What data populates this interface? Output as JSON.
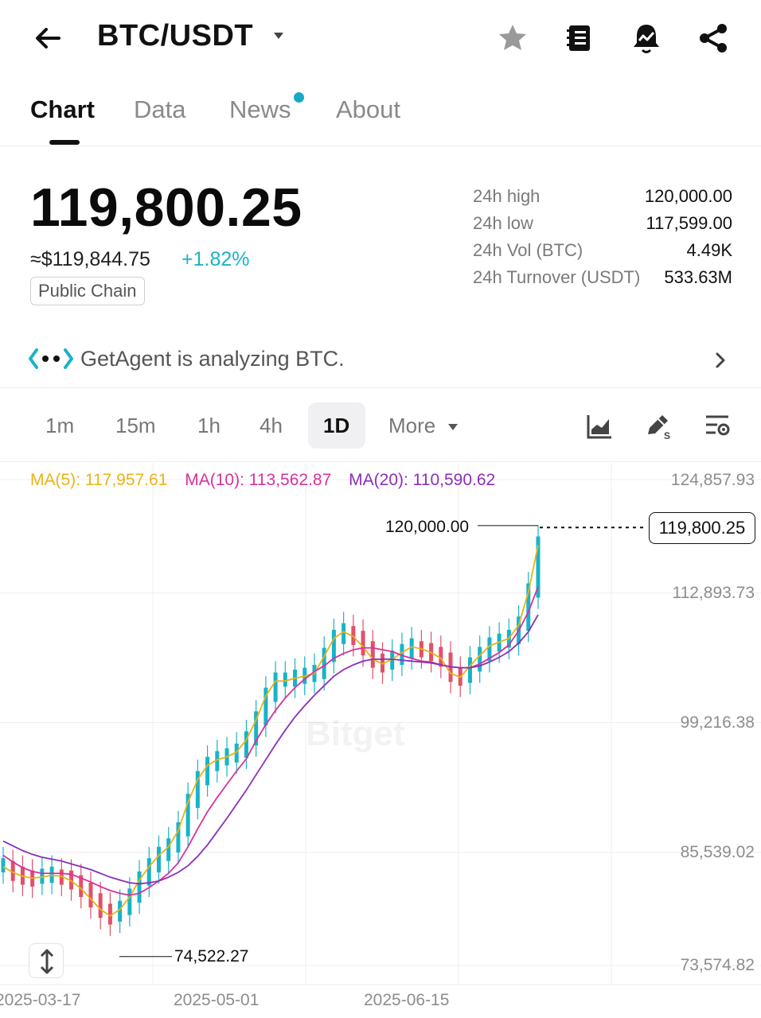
{
  "header": {
    "pair": "BTC/USDT",
    "icons": [
      "back-arrow-icon",
      "caret-down-icon",
      "star-icon",
      "notebook-icon",
      "price-alert-bell-icon",
      "share-icon"
    ]
  },
  "tabs": [
    {
      "label": "Chart",
      "active": true
    },
    {
      "label": "Data",
      "active": false
    },
    {
      "label": "News",
      "active": false,
      "has_dot": true
    },
    {
      "label": "About",
      "active": false
    }
  ],
  "ticker": {
    "price": "119,800.25",
    "usd_equiv": "≈$119,844.75",
    "change_pct": "+1.82%",
    "badge": "Public Chain",
    "change_color": "#19b3c9"
  },
  "stats": [
    {
      "label": "24h high",
      "value": "120,000.00"
    },
    {
      "label": "24h low",
      "value": "117,599.00"
    },
    {
      "label": "24h Vol (BTC)",
      "value": "4.49K"
    },
    {
      "label": "24h Turnover (USDT)",
      "value": "533.63M"
    }
  ],
  "agent_bar": {
    "text": "GetAgent is analyzing BTC."
  },
  "intervals": {
    "items": [
      "1m",
      "15m",
      "1h",
      "4h",
      "1D"
    ],
    "active": "1D",
    "more_label": "More"
  },
  "chart": {
    "ma5_label": "MA(5): 117,957.61",
    "ma10_label": "MA(10): 113,562.87",
    "ma20_label": "MA(20): 110,590.62",
    "last_price": "119,800.25",
    "high_marker": "120,000.00",
    "low_marker": "74,522.27",
    "watermark": "Bitget",
    "colors": {
      "up": "#19b3c9",
      "down": "#e15169",
      "ma5": "#e8b416",
      "ma10": "#d6329c",
      "ma20": "#8a2fb8"
    }
  },
  "chart_data": {
    "type": "candlestick",
    "y_ticks": [
      "124,857.93",
      "112,893.73",
      "99,216.38",
      "85,539.02",
      "73,574.82"
    ],
    "x_ticks": [
      "2025-03-17",
      "2025-05-01",
      "2025-06-15"
    ],
    "ylim": [
      73574.82,
      124857.93
    ],
    "series": [
      {
        "name": "MA(5)",
        "values": [
          84000,
          83400,
          83000,
          82800,
          82900,
          83100,
          83000,
          82500,
          81700,
          80600,
          79500,
          78800,
          79500,
          80800,
          82600,
          84000,
          85200,
          86100,
          87800,
          90800,
          93200,
          94700,
          95300,
          95600,
          96100,
          97400,
          99500,
          102000,
          103600,
          103600,
          103900,
          104100,
          104400,
          106200,
          108100,
          108800,
          108300,
          107200,
          105900,
          105400,
          105900,
          106600,
          107200,
          107000,
          106600,
          106000,
          104400,
          104000,
          105200,
          106300,
          107300,
          107700,
          108100,
          109500,
          113000,
          117957.61
        ]
      },
      {
        "name": "MA(10)",
        "values": [
          85200,
          84500,
          83900,
          83500,
          83300,
          83300,
          83300,
          83200,
          82800,
          82400,
          81900,
          81500,
          81200,
          81000,
          81200,
          81800,
          82500,
          83300,
          84400,
          86100,
          88000,
          89800,
          91300,
          92700,
          94100,
          95400,
          97300,
          99000,
          100500,
          101800,
          102900,
          103800,
          104600,
          105200,
          106000,
          106500,
          106900,
          107100,
          107100,
          106900,
          106700,
          106300,
          106000,
          105700,
          105600,
          105300,
          105100,
          105000,
          105000,
          105400,
          106000,
          106600,
          107400,
          108900,
          110900,
          113562.87
        ]
      },
      {
        "name": "MA(20)",
        "values": [
          86700,
          86200,
          85700,
          85300,
          85000,
          84800,
          84600,
          84300,
          84000,
          83700,
          83300,
          82900,
          82600,
          82300,
          82200,
          82300,
          82500,
          82900,
          83400,
          84100,
          85100,
          86300,
          87700,
          89100,
          90600,
          92100,
          93700,
          95300,
          96900,
          98400,
          99800,
          101000,
          102100,
          103100,
          104100,
          104800,
          105300,
          105700,
          105900,
          105900,
          105900,
          105800,
          105700,
          105600,
          105500,
          105300,
          105100,
          105000,
          105000,
          105200,
          105600,
          106100,
          106700,
          107600,
          108800,
          110590.62
        ]
      }
    ],
    "annotations": {
      "high": "120,000.00",
      "low": "74,522.27",
      "last": "119,800.25"
    }
  }
}
